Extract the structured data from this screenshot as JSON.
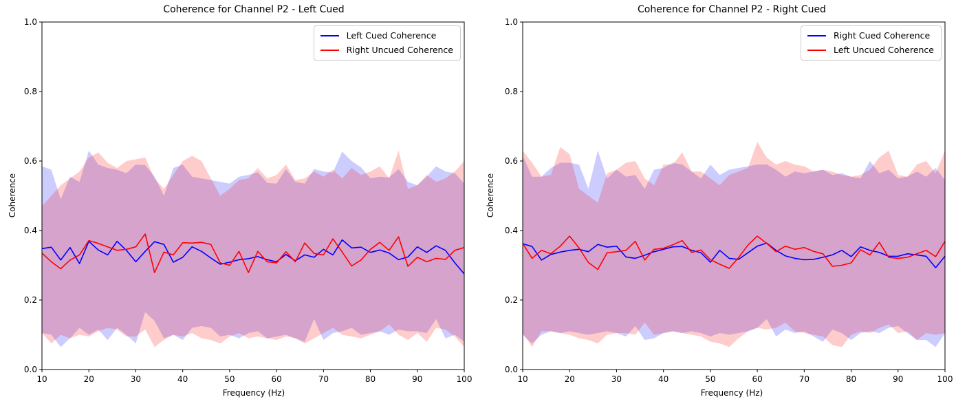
{
  "colors": {
    "blue_line": "#0000ff",
    "red_line": "#ff0000",
    "blue_fill": "rgba(0,0,255,0.2)",
    "red_fill": "rgba(255,0,0,0.2)",
    "spine": "#000000",
    "legend_border": "#cccccc",
    "background": "#ffffff"
  },
  "chart_data": [
    {
      "type": "line",
      "title": "Coherence for Channel P2 - Left Cued",
      "xlabel": "Frequency (Hz)",
      "ylabel": "Coherence",
      "xlim": [
        10,
        100
      ],
      "ylim": [
        0.0,
        1.0
      ],
      "xticks": [
        10,
        20,
        30,
        40,
        50,
        60,
        70,
        80,
        90,
        100
      ],
      "yticks": [
        0.0,
        0.2,
        0.4,
        0.6,
        0.8,
        1.0
      ],
      "grid": false,
      "legend_position": "upper right",
      "x": [
        10,
        12,
        14,
        16,
        18,
        20,
        22,
        24,
        26,
        28,
        30,
        32,
        34,
        36,
        38,
        40,
        42,
        44,
        46,
        48,
        50,
        52,
        54,
        56,
        58,
        60,
        62,
        64,
        66,
        68,
        70,
        72,
        74,
        76,
        78,
        80,
        82,
        84,
        86,
        88,
        90,
        92,
        94,
        96,
        98,
        100
      ],
      "series": [
        {
          "name": "Left Cued Coherence",
          "color": "blue",
          "mean": [
            0.348,
            0.352,
            0.315,
            0.351,
            0.305,
            0.369,
            0.344,
            0.33,
            0.369,
            0.343,
            0.31,
            0.34,
            0.368,
            0.36,
            0.309,
            0.323,
            0.353,
            0.34,
            0.321,
            0.303,
            0.309,
            0.316,
            0.319,
            0.325,
            0.316,
            0.31,
            0.331,
            0.313,
            0.33,
            0.323,
            0.346,
            0.33,
            0.373,
            0.35,
            0.352,
            0.337,
            0.344,
            0.335,
            0.316,
            0.324,
            0.353,
            0.337,
            0.356,
            0.343,
            0.307,
            0.275
          ],
          "upper": [
            0.585,
            0.575,
            0.49,
            0.555,
            0.54,
            0.63,
            0.59,
            0.58,
            0.575,
            0.565,
            0.59,
            0.588,
            0.555,
            0.5,
            0.58,
            0.59,
            0.555,
            0.55,
            0.545,
            0.54,
            0.535,
            0.555,
            0.56,
            0.568,
            0.537,
            0.535,
            0.577,
            0.54,
            0.535,
            0.577,
            0.57,
            0.567,
            0.627,
            0.6,
            0.582,
            0.55,
            0.555,
            0.553,
            0.577,
            0.54,
            0.53,
            0.555,
            0.585,
            0.57,
            0.565,
            0.535
          ],
          "lower": [
            0.105,
            0.1,
            0.065,
            0.09,
            0.12,
            0.1,
            0.115,
            0.085,
            0.12,
            0.1,
            0.075,
            0.165,
            0.14,
            0.09,
            0.1,
            0.085,
            0.12,
            0.125,
            0.12,
            0.095,
            0.1,
            0.09,
            0.105,
            0.11,
            0.09,
            0.095,
            0.1,
            0.09,
            0.08,
            0.145,
            0.085,
            0.105,
            0.11,
            0.12,
            0.1,
            0.105,
            0.11,
            0.1,
            0.115,
            0.11,
            0.11,
            0.105,
            0.145,
            0.09,
            0.1,
            0.08
          ]
        },
        {
          "name": "Right Uncued Coherence",
          "color": "red",
          "mean": [
            0.335,
            0.31,
            0.29,
            0.315,
            0.33,
            0.371,
            0.363,
            0.353,
            0.343,
            0.346,
            0.353,
            0.39,
            0.279,
            0.338,
            0.33,
            0.365,
            0.364,
            0.366,
            0.36,
            0.307,
            0.3,
            0.34,
            0.279,
            0.34,
            0.31,
            0.307,
            0.339,
            0.31,
            0.364,
            0.334,
            0.33,
            0.376,
            0.338,
            0.298,
            0.315,
            0.346,
            0.366,
            0.343,
            0.382,
            0.297,
            0.323,
            0.31,
            0.32,
            0.317,
            0.343,
            0.351
          ],
          "upper": [
            0.47,
            0.5,
            0.53,
            0.55,
            0.57,
            0.61,
            0.625,
            0.595,
            0.58,
            0.6,
            0.605,
            0.61,
            0.55,
            0.52,
            0.56,
            0.6,
            0.615,
            0.6,
            0.55,
            0.5,
            0.52,
            0.545,
            0.55,
            0.58,
            0.55,
            0.56,
            0.59,
            0.545,
            0.55,
            0.57,
            0.555,
            0.575,
            0.55,
            0.58,
            0.56,
            0.57,
            0.585,
            0.55,
            0.63,
            0.52,
            0.53,
            0.56,
            0.54,
            0.55,
            0.57,
            0.6
          ],
          "lower": [
            0.105,
            0.075,
            0.1,
            0.09,
            0.1,
            0.095,
            0.11,
            0.12,
            0.115,
            0.095,
            0.095,
            0.115,
            0.065,
            0.085,
            0.1,
            0.095,
            0.105,
            0.09,
            0.085,
            0.075,
            0.095,
            0.105,
            0.09,
            0.095,
            0.09,
            0.085,
            0.095,
            0.09,
            0.075,
            0.09,
            0.105,
            0.12,
            0.1,
            0.095,
            0.09,
            0.1,
            0.11,
            0.13,
            0.1,
            0.085,
            0.105,
            0.08,
            0.12,
            0.115,
            0.095,
            0.065
          ]
        }
      ]
    },
    {
      "type": "line",
      "title": "Coherence for Channel P2 - Right Cued",
      "xlabel": "Frequency (Hz)",
      "ylabel": "Coherence",
      "xlim": [
        10,
        100
      ],
      "ylim": [
        0.0,
        1.0
      ],
      "xticks": [
        10,
        20,
        30,
        40,
        50,
        60,
        70,
        80,
        90,
        100
      ],
      "yticks": [
        0.0,
        0.2,
        0.4,
        0.6,
        0.8,
        1.0
      ],
      "grid": false,
      "legend_position": "upper right",
      "x": [
        10,
        12,
        14,
        16,
        18,
        20,
        22,
        24,
        26,
        28,
        30,
        32,
        34,
        36,
        38,
        40,
        42,
        44,
        46,
        48,
        50,
        52,
        54,
        56,
        58,
        60,
        62,
        64,
        66,
        68,
        70,
        72,
        74,
        76,
        78,
        80,
        82,
        84,
        86,
        88,
        90,
        92,
        94,
        96,
        98,
        100
      ],
      "series": [
        {
          "name": "Right Cued Coherence",
          "color": "blue",
          "mean": [
            0.362,
            0.354,
            0.315,
            0.331,
            0.338,
            0.343,
            0.346,
            0.339,
            0.36,
            0.352,
            0.355,
            0.324,
            0.32,
            0.329,
            0.339,
            0.346,
            0.353,
            0.354,
            0.343,
            0.336,
            0.309,
            0.343,
            0.32,
            0.317,
            0.336,
            0.355,
            0.364,
            0.343,
            0.327,
            0.32,
            0.316,
            0.317,
            0.323,
            0.33,
            0.343,
            0.325,
            0.353,
            0.343,
            0.337,
            0.326,
            0.326,
            0.333,
            0.33,
            0.326,
            0.293,
            0.326
          ],
          "upper": [
            0.615,
            0.555,
            0.555,
            0.58,
            0.595,
            0.595,
            0.59,
            0.52,
            0.63,
            0.55,
            0.575,
            0.555,
            0.56,
            0.52,
            0.575,
            0.58,
            0.595,
            0.59,
            0.57,
            0.55,
            0.59,
            0.56,
            0.575,
            0.58,
            0.585,
            0.59,
            0.59,
            0.575,
            0.555,
            0.57,
            0.565,
            0.57,
            0.575,
            0.56,
            0.565,
            0.555,
            0.55,
            0.6,
            0.565,
            0.575,
            0.55,
            0.555,
            0.57,
            0.555,
            0.58,
            0.545
          ],
          "lower": [
            0.1,
            0.075,
            0.1,
            0.11,
            0.105,
            0.11,
            0.105,
            0.1,
            0.105,
            0.11,
            0.105,
            0.095,
            0.125,
            0.085,
            0.09,
            0.105,
            0.11,
            0.105,
            0.11,
            0.105,
            0.095,
            0.105,
            0.1,
            0.105,
            0.11,
            0.12,
            0.145,
            0.095,
            0.115,
            0.105,
            0.11,
            0.095,
            0.08,
            0.115,
            0.105,
            0.085,
            0.105,
            0.11,
            0.105,
            0.12,
            0.125,
            0.105,
            0.085,
            0.085,
            0.065,
            0.105
          ]
        },
        {
          "name": "Left Uncued Coherence",
          "color": "red",
          "mean": [
            0.363,
            0.32,
            0.343,
            0.333,
            0.355,
            0.384,
            0.35,
            0.308,
            0.288,
            0.336,
            0.339,
            0.343,
            0.369,
            0.315,
            0.346,
            0.349,
            0.359,
            0.371,
            0.337,
            0.344,
            0.316,
            0.303,
            0.291,
            0.322,
            0.358,
            0.384,
            0.363,
            0.339,
            0.355,
            0.346,
            0.351,
            0.34,
            0.333,
            0.297,
            0.3,
            0.307,
            0.345,
            0.33,
            0.366,
            0.323,
            0.32,
            0.323,
            0.333,
            0.343,
            0.325,
            0.369
          ],
          "upper": [
            0.63,
            0.595,
            0.555,
            0.56,
            0.64,
            0.62,
            0.52,
            0.5,
            0.48,
            0.565,
            0.575,
            0.595,
            0.6,
            0.55,
            0.53,
            0.59,
            0.59,
            0.625,
            0.57,
            0.57,
            0.55,
            0.53,
            0.56,
            0.57,
            0.58,
            0.655,
            0.61,
            0.59,
            0.6,
            0.59,
            0.585,
            0.57,
            0.575,
            0.57,
            0.56,
            0.555,
            0.56,
            0.575,
            0.61,
            0.63,
            0.56,
            0.555,
            0.59,
            0.6,
            0.565,
            0.63
          ],
          "lower": [
            0.105,
            0.065,
            0.11,
            0.11,
            0.105,
            0.1,
            0.09,
            0.085,
            0.075,
            0.1,
            0.105,
            0.105,
            0.1,
            0.135,
            0.1,
            0.105,
            0.11,
            0.105,
            0.1,
            0.095,
            0.08,
            0.075,
            0.065,
            0.09,
            0.11,
            0.12,
            0.115,
            0.12,
            0.135,
            0.11,
            0.105,
            0.1,
            0.095,
            0.07,
            0.065,
            0.1,
            0.11,
            0.105,
            0.12,
            0.13,
            0.105,
            0.11,
            0.085,
            0.105,
            0.1,
            0.105
          ]
        }
      ]
    }
  ]
}
